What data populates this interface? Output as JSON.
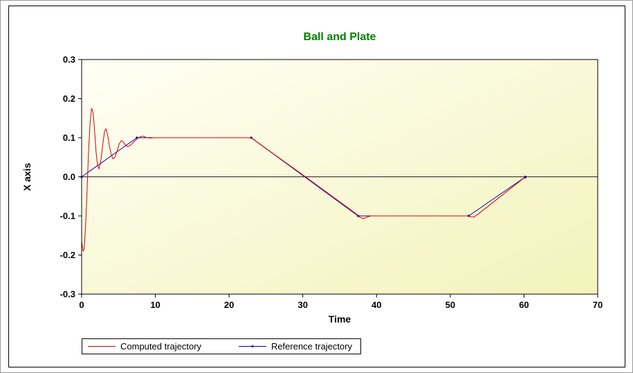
{
  "window": {
    "background": "#ffffff",
    "frame_color": "#000000"
  },
  "chart_data": {
    "type": "line",
    "title": "Ball and Plate",
    "title_color": "#008000",
    "xlabel": "Time",
    "ylabel": "X axis",
    "xlim": [
      0,
      70
    ],
    "ylim": [
      -0.3,
      0.3
    ],
    "xticks": [
      0,
      10,
      20,
      30,
      40,
      50,
      60,
      70
    ],
    "xtick_labels": [
      "0",
      "10",
      "20",
      "30",
      "40",
      "50",
      "60",
      "70"
    ],
    "yticks": [
      0.3,
      0.2,
      0.1,
      0,
      -0.1,
      -0.2,
      -0.3
    ],
    "ytick_labels": [
      "0.3",
      "0.2",
      "0.1",
      "0.0",
      "-0.1",
      "-0.2",
      "-0.3"
    ],
    "grid": false,
    "zero_line": true,
    "plot_background": [
      "#fffff6",
      "#f3f3bb"
    ],
    "legend_position": "bottom-left",
    "series": [
      {
        "name": "Reference trajectory",
        "color": "#0000b2",
        "marker": "dot",
        "points": [
          [
            0,
            0
          ],
          [
            7.5,
            0.1
          ],
          [
            23,
            0.1
          ],
          [
            37.5,
            -0.1
          ],
          [
            52.5,
            -0.1
          ],
          [
            60.2,
            0
          ]
        ]
      },
      {
        "name": "Computed trajectory",
        "color": "#d40000",
        "marker": "none",
        "points": [
          [
            0,
            -0.165
          ],
          [
            0.2,
            -0.19
          ],
          [
            0.35,
            -0.185
          ],
          [
            0.55,
            -0.12
          ],
          [
            0.75,
            -0.03
          ],
          [
            0.95,
            0.07
          ],
          [
            1.15,
            0.14
          ],
          [
            1.35,
            0.175
          ],
          [
            1.55,
            0.165
          ],
          [
            1.75,
            0.12
          ],
          [
            1.95,
            0.065
          ],
          [
            2.15,
            0.03
          ],
          [
            2.35,
            0.02
          ],
          [
            2.6,
            0.04
          ],
          [
            2.85,
            0.08
          ],
          [
            3.1,
            0.115
          ],
          [
            3.3,
            0.123
          ],
          [
            3.5,
            0.11
          ],
          [
            3.75,
            0.08
          ],
          [
            4.0,
            0.058
          ],
          [
            4.25,
            0.046
          ],
          [
            4.5,
            0.05
          ],
          [
            4.8,
            0.065
          ],
          [
            5.1,
            0.085
          ],
          [
            5.4,
            0.093
          ],
          [
            5.7,
            0.088
          ],
          [
            6.0,
            0.08
          ],
          [
            6.3,
            0.077
          ],
          [
            6.7,
            0.082
          ],
          [
            7.1,
            0.09
          ],
          [
            7.5,
            0.097
          ],
          [
            7.9,
            0.102
          ],
          [
            8.3,
            0.104
          ],
          [
            8.7,
            0.101
          ],
          [
            9.2,
            0.099
          ],
          [
            9.8,
            0.1
          ],
          [
            22.8,
            0.1
          ],
          [
            23.2,
            0.098
          ],
          [
            23.8,
            0.089
          ],
          [
            30,
            0.005
          ],
          [
            37.2,
            -0.094
          ],
          [
            37.7,
            -0.103
          ],
          [
            38.2,
            -0.107
          ],
          [
            38.7,
            -0.103
          ],
          [
            39.2,
            -0.1
          ],
          [
            52.3,
            -0.1
          ],
          [
            52.7,
            -0.102
          ],
          [
            53.2,
            -0.103
          ],
          [
            53.8,
            -0.095
          ],
          [
            60.0,
            -0.003
          ],
          [
            60.3,
            -0.005
          ]
        ]
      }
    ]
  },
  "legend": {
    "items": [
      {
        "label": "Computed trajectory",
        "color": "#d40000",
        "marker": "none"
      },
      {
        "label": "Reference trajectory",
        "color": "#0000b2",
        "marker": "dot"
      }
    ]
  }
}
